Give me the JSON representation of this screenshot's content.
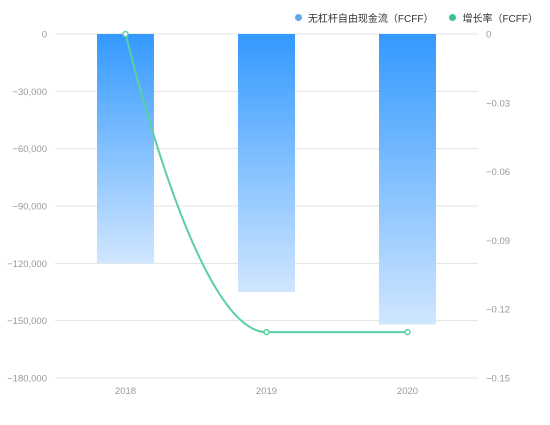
{
  "chart_data": {
    "type": "bar",
    "categories": [
      "2018",
      "2019",
      "2020"
    ],
    "series": [
      {
        "name": "无杠杆自由现金流（FCFF）",
        "type": "bar",
        "axis": "left",
        "values": [
          -120000,
          -135000,
          -152000
        ],
        "color": "#3399ff",
        "legend_color": "#5aa8ee"
      },
      {
        "name": "增长率（FCFF）",
        "type": "line",
        "axis": "right",
        "values": [
          0,
          -0.13,
          -0.13
        ],
        "color": "#5ad0a0",
        "legend_color": "#3cc38f"
      }
    ],
    "y_left": {
      "ylim": [
        -180000,
        0
      ],
      "ticks": [
        0,
        -30000,
        -60000,
        -90000,
        -120000,
        -150000,
        -180000
      ],
      "tick_labels": [
        "0",
        "−30,000",
        "−60,000",
        "−90,000",
        "−120,000",
        "−150,000",
        "−180,000"
      ]
    },
    "y_right": {
      "ylim": [
        -0.15,
        0
      ],
      "ticks": [
        0,
        -0.03,
        -0.06,
        -0.09,
        -0.12,
        -0.15
      ],
      "tick_labels": [
        "0",
        "−0.03",
        "−0.06",
        "−0.09",
        "−0.12",
        "−0.15"
      ]
    },
    "grid": true,
    "legend_position": "top-right"
  }
}
